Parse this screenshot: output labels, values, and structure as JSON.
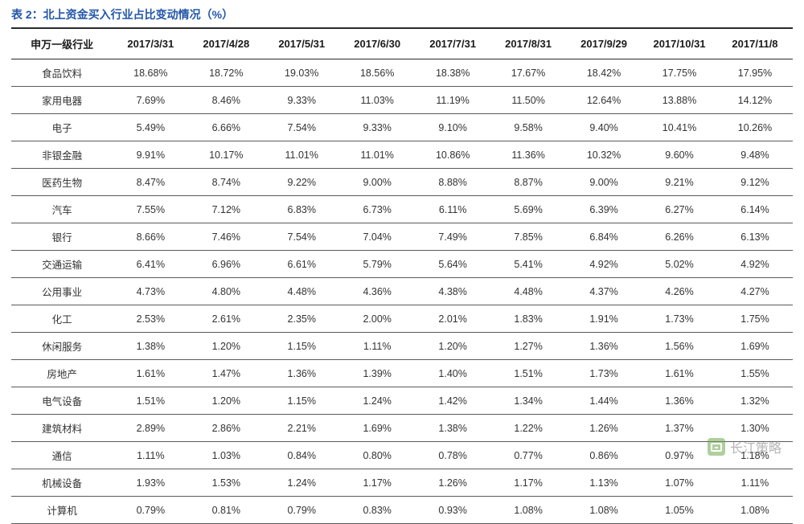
{
  "title": "表 2：北上资金买入行业占比变动情况（%）",
  "table": {
    "header_label": "申万一级行业",
    "columns": [
      "2017/3/31",
      "2017/4/28",
      "2017/5/31",
      "2017/6/30",
      "2017/7/31",
      "2017/8/31",
      "2017/9/29",
      "2017/10/31",
      "2017/11/8"
    ],
    "rows": [
      {
        "name": "食品饮料",
        "values": [
          "18.68%",
          "18.72%",
          "19.03%",
          "18.56%",
          "18.38%",
          "17.67%",
          "18.42%",
          "17.75%",
          "17.95%"
        ]
      },
      {
        "name": "家用电器",
        "values": [
          "7.69%",
          "8.46%",
          "9.33%",
          "11.03%",
          "11.19%",
          "11.50%",
          "12.64%",
          "13.88%",
          "14.12%"
        ]
      },
      {
        "name": "电子",
        "values": [
          "5.49%",
          "6.66%",
          "7.54%",
          "9.33%",
          "9.10%",
          "9.58%",
          "9.40%",
          "10.41%",
          "10.26%"
        ]
      },
      {
        "name": "非银金融",
        "values": [
          "9.91%",
          "10.17%",
          "11.01%",
          "11.01%",
          "10.86%",
          "11.36%",
          "10.32%",
          "9.60%",
          "9.48%"
        ]
      },
      {
        "name": "医药生物",
        "values": [
          "8.47%",
          "8.74%",
          "9.22%",
          "9.00%",
          "8.88%",
          "8.87%",
          "9.00%",
          "9.21%",
          "9.12%"
        ]
      },
      {
        "name": "汽车",
        "values": [
          "7.55%",
          "7.12%",
          "6.83%",
          "6.73%",
          "6.11%",
          "5.69%",
          "6.39%",
          "6.27%",
          "6.14%"
        ]
      },
      {
        "name": "银行",
        "values": [
          "8.66%",
          "7.46%",
          "7.54%",
          "7.04%",
          "7.49%",
          "7.85%",
          "6.84%",
          "6.26%",
          "6.13%"
        ]
      },
      {
        "name": "交通运输",
        "values": [
          "6.41%",
          "6.96%",
          "6.61%",
          "5.79%",
          "5.64%",
          "5.41%",
          "4.92%",
          "5.02%",
          "4.92%"
        ]
      },
      {
        "name": "公用事业",
        "values": [
          "4.73%",
          "4.80%",
          "4.48%",
          "4.36%",
          "4.38%",
          "4.48%",
          "4.37%",
          "4.26%",
          "4.27%"
        ]
      },
      {
        "name": "化工",
        "values": [
          "2.53%",
          "2.61%",
          "2.35%",
          "2.00%",
          "2.01%",
          "1.83%",
          "1.91%",
          "1.73%",
          "1.75%"
        ]
      },
      {
        "name": "休闲服务",
        "values": [
          "1.38%",
          "1.20%",
          "1.15%",
          "1.11%",
          "1.20%",
          "1.27%",
          "1.36%",
          "1.56%",
          "1.69%"
        ]
      },
      {
        "name": "房地产",
        "values": [
          "1.61%",
          "1.47%",
          "1.36%",
          "1.39%",
          "1.40%",
          "1.51%",
          "1.73%",
          "1.61%",
          "1.55%"
        ]
      },
      {
        "name": "电气设备",
        "values": [
          "1.51%",
          "1.20%",
          "1.15%",
          "1.24%",
          "1.42%",
          "1.34%",
          "1.44%",
          "1.36%",
          "1.32%"
        ]
      },
      {
        "name": "建筑材料",
        "values": [
          "2.89%",
          "2.86%",
          "2.21%",
          "1.69%",
          "1.38%",
          "1.22%",
          "1.26%",
          "1.37%",
          "1.30%"
        ]
      },
      {
        "name": "通信",
        "values": [
          "1.11%",
          "1.03%",
          "0.84%",
          "0.80%",
          "0.78%",
          "0.77%",
          "0.86%",
          "0.97%",
          "1.18%"
        ]
      },
      {
        "name": "机械设备",
        "values": [
          "1.93%",
          "1.53%",
          "1.24%",
          "1.17%",
          "1.26%",
          "1.17%",
          "1.13%",
          "1.07%",
          "1.11%"
        ]
      },
      {
        "name": "计算机",
        "values": [
          "0.79%",
          "0.81%",
          "0.79%",
          "0.83%",
          "0.93%",
          "1.08%",
          "1.08%",
          "1.05%",
          "1.08%"
        ]
      }
    ]
  },
  "styling": {
    "title_color": "#2356a8",
    "title_fontsize": 14,
    "header_border_color": "#2a2a2a",
    "row_border_color": "#5a5a5a",
    "cell_fontsize": 12.5,
    "header_fontsize": 13,
    "background_color": "#ffffff",
    "text_color": "#333333",
    "header_text_color": "#1a1a1a"
  },
  "watermark": {
    "text": "长江策略",
    "icon_bg": "#6fa84f"
  }
}
